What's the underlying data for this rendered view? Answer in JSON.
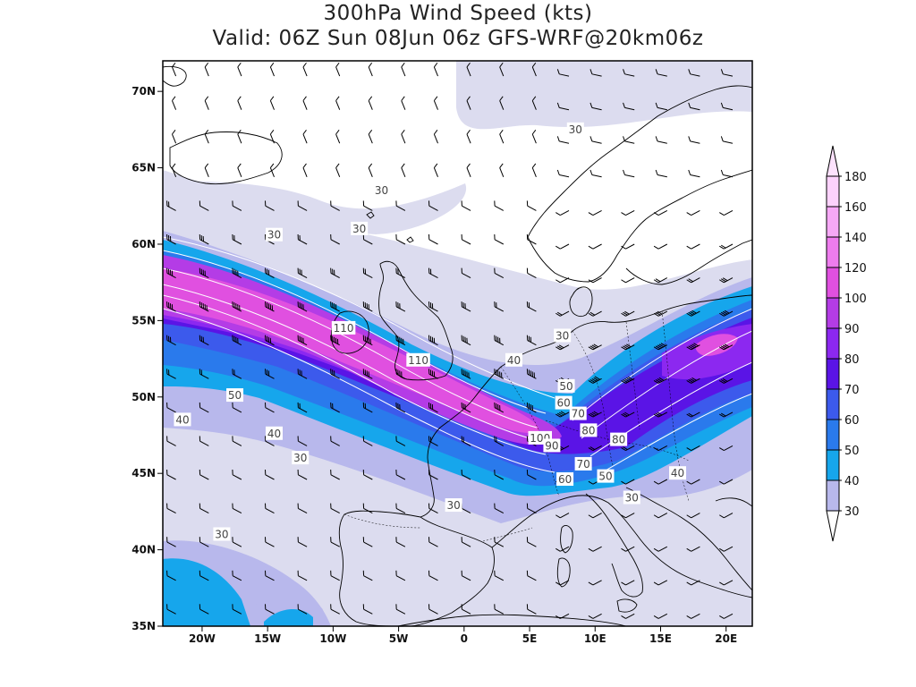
{
  "map": {
    "title_line1": "300hPa Wind Speed (kts)",
    "title_line2": "Valid: 06Z Sun 08Jun 06z GFS-WRF@20km06z",
    "lon_ticks": [
      "20W",
      "15W",
      "10W",
      "5W",
      "0",
      "5E",
      "10E",
      "15E",
      "20E"
    ],
    "lat_ticks": [
      "70N",
      "65N",
      "60N",
      "55N",
      "50N",
      "45N",
      "40N",
      "35N"
    ],
    "lon_range_deg": [
      -23,
      22
    ],
    "lat_range_deg": [
      35,
      72
    ],
    "contour_labels": [
      {
        "text": "30",
        "lon": -0.8,
        "lat": 42.9
      },
      {
        "text": "110",
        "lon": -9.2,
        "lat": 54.5
      },
      {
        "text": "110",
        "lon": -3.5,
        "lat": 52.4
      },
      {
        "text": "40",
        "lon": 3.8,
        "lat": 52.4
      },
      {
        "text": "30",
        "lon": 7.5,
        "lat": 54.0
      },
      {
        "text": "30",
        "lon": 8.5,
        "lat": 67.5
      },
      {
        "text": "30",
        "lon": -6.3,
        "lat": 63.5
      },
      {
        "text": "30",
        "lon": -8.0,
        "lat": 61.0
      },
      {
        "text": "30",
        "lon": -14.5,
        "lat": 60.6
      },
      {
        "text": "50",
        "lon": -17.5,
        "lat": 50.1
      },
      {
        "text": "40",
        "lon": -21.5,
        "lat": 48.5
      },
      {
        "text": "40",
        "lon": -14.5,
        "lat": 47.6
      },
      {
        "text": "30",
        "lon": -12.5,
        "lat": 46.0
      },
      {
        "text": "30",
        "lon": -18.5,
        "lat": 41.0
      },
      {
        "text": "50",
        "lon": 7.8,
        "lat": 50.7
      },
      {
        "text": "60",
        "lon": 7.6,
        "lat": 49.6
      },
      {
        "text": "70",
        "lon": 8.7,
        "lat": 48.9
      },
      {
        "text": "80",
        "lon": 9.5,
        "lat": 47.8
      },
      {
        "text": "100",
        "lon": 5.8,
        "lat": 47.3
      },
      {
        "text": "90",
        "lon": 6.7,
        "lat": 46.8
      },
      {
        "text": "80",
        "lon": 11.8,
        "lat": 47.2
      },
      {
        "text": "70",
        "lon": 9.1,
        "lat": 45.6
      },
      {
        "text": "60",
        "lon": 7.7,
        "lat": 44.6
      },
      {
        "text": "50",
        "lon": 10.8,
        "lat": 44.8
      },
      {
        "text": "40",
        "lon": 16.3,
        "lat": 45.0
      },
      {
        "text": "30",
        "lon": 12.8,
        "lat": 43.4
      }
    ]
  },
  "colorbar": {
    "levels": [
      "180",
      "160",
      "140",
      "120",
      "100",
      "90",
      "80",
      "70",
      "60",
      "50",
      "40",
      "30"
    ],
    "colors": [
      "#fcd2fc",
      "#f6a8f6",
      "#ee7cee",
      "#e050e0",
      "#b43ce6",
      "#8c28f0",
      "#5a14e6",
      "#3c5aec",
      "#2a7aec",
      "#16a6ec",
      "#b8b8ec",
      "#dcdcef"
    ],
    "top_arrow_color": "#fde2fd",
    "bottom_arrow_color": "#ffffff"
  },
  "colors": {
    "coast": "#000000",
    "wind_barb": "#000000",
    "contour_line": "#ffffff"
  },
  "icons": [
    "wind-barb-icon",
    "colorbar-arrow-icon"
  ]
}
